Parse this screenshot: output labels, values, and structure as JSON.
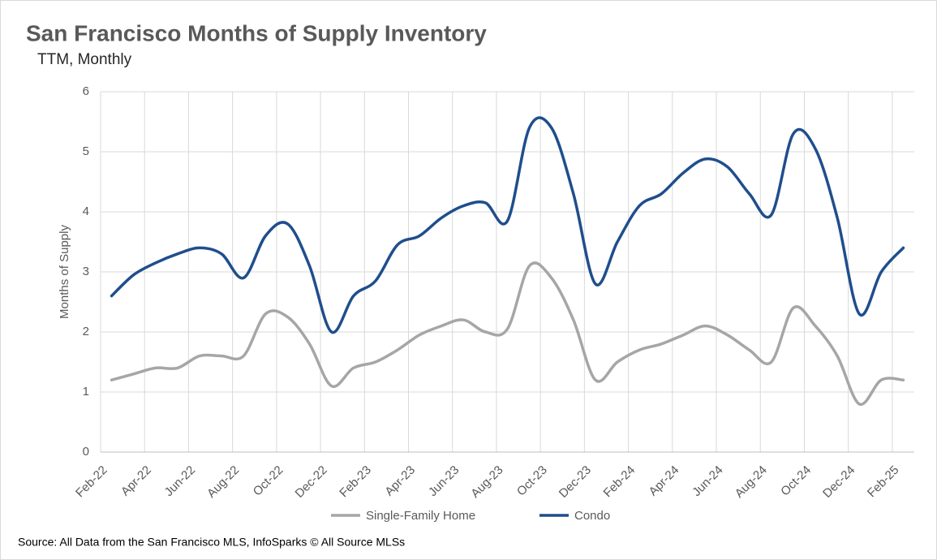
{
  "chart_data": {
    "type": "line",
    "title": "San Francisco Months of Supply Inventory",
    "subtitle": "TTM, Monthly",
    "y_label": "Months of Supply",
    "source": "Source: All Data from the San Francisco MLS, InfoSparks © All Source MLSs",
    "categories": [
      "Feb-22",
      null,
      "Apr-22",
      null,
      "Jun-22",
      null,
      "Aug-22",
      null,
      "Oct-22",
      null,
      "Dec-22",
      null,
      "Feb-23",
      null,
      "Apr-23",
      null,
      "Jun-23",
      null,
      "Aug-23",
      null,
      "Oct-23",
      null,
      "Dec-23",
      null,
      "Feb-24",
      null,
      "Apr-24",
      null,
      "Jun-24",
      null,
      "Aug-24",
      null,
      "Oct-24",
      null,
      "Dec-24",
      null,
      "Feb-25"
    ],
    "series": [
      {
        "name": "Single-Family Home",
        "color": "#a6a6a6",
        "values": [
          1.2,
          1.3,
          1.4,
          1.4,
          1.6,
          1.6,
          1.6,
          2.3,
          2.25,
          1.8,
          1.1,
          1.4,
          1.5,
          1.7,
          1.95,
          2.1,
          2.2,
          2.0,
          2.05,
          3.1,
          2.9,
          2.2,
          1.2,
          1.5,
          1.7,
          1.8,
          1.95,
          2.1,
          1.95,
          1.7,
          1.5,
          2.4,
          2.1,
          1.6,
          0.8,
          1.2,
          1.2
        ]
      },
      {
        "name": "Condo",
        "color": "#1f4e8c",
        "values": [
          2.6,
          2.95,
          3.15,
          3.3,
          3.4,
          3.3,
          2.9,
          3.6,
          3.8,
          3.1,
          2.0,
          2.6,
          2.85,
          3.45,
          3.6,
          3.9,
          4.1,
          4.15,
          3.85,
          5.4,
          5.4,
          4.3,
          2.8,
          3.5,
          4.1,
          4.3,
          4.65,
          4.88,
          4.75,
          4.3,
          3.95,
          5.3,
          5.05,
          3.9,
          2.3,
          3.0,
          3.4
        ]
      }
    ],
    "ylim": [
      0,
      6
    ],
    "yticks": [
      0,
      1,
      2,
      3,
      4,
      5,
      6
    ],
    "grid": true,
    "legend": "bottom"
  }
}
